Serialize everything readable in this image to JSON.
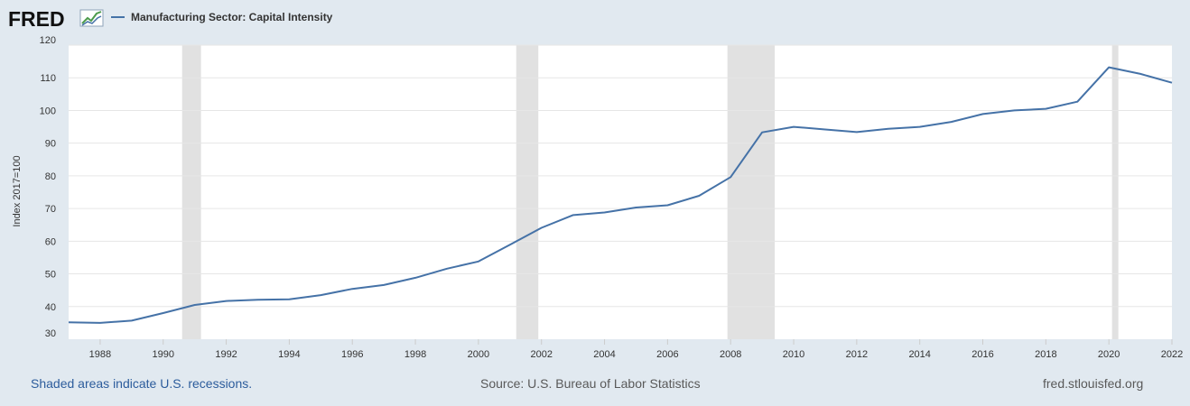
{
  "logo": {
    "text": "FRED"
  },
  "legend": {
    "label": "Manufacturing Sector: Capital Intensity"
  },
  "footer": {
    "note": "Shaded areas indicate U.S. recessions.",
    "source": "Source: U.S. Bureau of Labor Statistics",
    "url": "fred.stlouisfed.org"
  },
  "colors": {
    "line": "#4572a7",
    "recession": "#e1e1e1",
    "grid": "#e6e6e6",
    "background": "#e1e9f0"
  },
  "chart_data": {
    "type": "line",
    "title": "",
    "xlabel": "",
    "ylabel": "Index 2017=100",
    "xlim": [
      1987,
      2022
    ],
    "ylim": [
      30,
      120
    ],
    "yticks": [
      30,
      40,
      50,
      60,
      70,
      80,
      90,
      100,
      110,
      120
    ],
    "xticks": [
      1988,
      1990,
      1992,
      1994,
      1996,
      1998,
      2000,
      2002,
      2004,
      2006,
      2008,
      2010,
      2012,
      2014,
      2016,
      2018,
      2020,
      2022
    ],
    "grid": true,
    "legend_position": "top-left",
    "recessions": [
      [
        1990.6,
        1991.2
      ],
      [
        2001.2,
        2001.9
      ],
      [
        2007.9,
        2009.4
      ],
      [
        2020.1,
        2020.3
      ]
    ],
    "series": [
      {
        "name": "Manufacturing Sector: Capital Intensity",
        "x": [
          1987,
          1988,
          1989,
          1990,
          1991,
          1992,
          1993,
          1994,
          1995,
          1996,
          1997,
          1998,
          1999,
          2000,
          2001,
          2002,
          2003,
          2004,
          2005,
          2006,
          2007,
          2008,
          2009,
          2010,
          2011,
          2012,
          2013,
          2014,
          2015,
          2016,
          2017,
          2018,
          2019,
          2020,
          2021,
          2022
        ],
        "values": [
          35.2,
          35.0,
          35.7,
          38.0,
          40.5,
          41.7,
          42.1,
          42.2,
          43.5,
          45.4,
          46.6,
          48.8,
          51.6,
          53.8,
          58.9,
          64.1,
          68.0,
          68.8,
          70.3,
          71.0,
          73.9,
          79.6,
          93.3,
          95.0,
          94.2,
          93.4,
          94.4,
          95.0,
          96.5,
          98.9,
          100.0,
          100.5,
          102.7,
          113.2,
          111.2,
          108.5
        ]
      }
    ]
  }
}
